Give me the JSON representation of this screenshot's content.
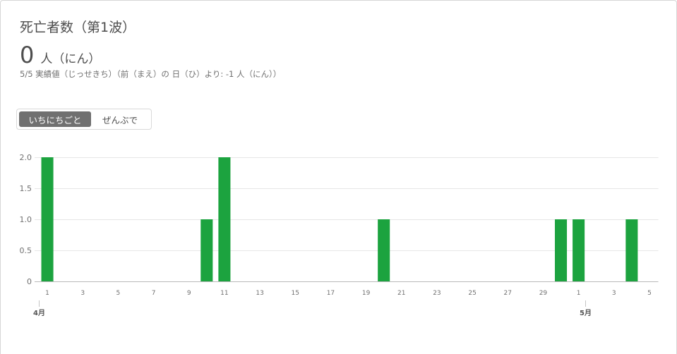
{
  "card": {
    "headline_value": "0",
    "headline_unit": "人（にん）",
    "summary": "5/5 実績値（じっせきち）（前（まえ）の 日（ひ）より: -1 人（にん））"
  },
  "toggle": {
    "options": [
      {
        "label": "いちにちごと",
        "selected": true
      },
      {
        "label": "ぜんぶで",
        "selected": false
      }
    ]
  },
  "colors": {
    "bar": "#1ca33f",
    "toggle_selected_bg": "#707070"
  },
  "chart_data": {
    "type": "bar",
    "title": "死亡者数（第1波）",
    "categories": [
      "4/1",
      "4/2",
      "4/3",
      "4/4",
      "4/5",
      "4/6",
      "4/7",
      "4/8",
      "4/9",
      "4/10",
      "4/11",
      "4/12",
      "4/13",
      "4/14",
      "4/15",
      "4/16",
      "4/17",
      "4/18",
      "4/19",
      "4/20",
      "4/21",
      "4/22",
      "4/23",
      "4/24",
      "4/25",
      "4/26",
      "4/27",
      "4/28",
      "4/29",
      "4/30",
      "5/1",
      "5/2",
      "5/3",
      "5/4",
      "5/5"
    ],
    "values": [
      2,
      0,
      0,
      0,
      0,
      0,
      0,
      0,
      0,
      1,
      2,
      0,
      0,
      0,
      0,
      0,
      0,
      0,
      0,
      1,
      0,
      0,
      0,
      0,
      0,
      0,
      0,
      0,
      0,
      1,
      1,
      0,
      0,
      1,
      0
    ],
    "x_tick_labels": [
      {
        "date": "4/1",
        "label": "1"
      },
      {
        "date": "4/3",
        "label": "3"
      },
      {
        "date": "4/5",
        "label": "5"
      },
      {
        "date": "4/7",
        "label": "7"
      },
      {
        "date": "4/9",
        "label": "9"
      },
      {
        "date": "4/11",
        "label": "11"
      },
      {
        "date": "4/13",
        "label": "13"
      },
      {
        "date": "4/15",
        "label": "15"
      },
      {
        "date": "4/17",
        "label": "17"
      },
      {
        "date": "4/19",
        "label": "19"
      },
      {
        "date": "4/21",
        "label": "21"
      },
      {
        "date": "4/23",
        "label": "23"
      },
      {
        "date": "4/25",
        "label": "25"
      },
      {
        "date": "4/27",
        "label": "27"
      },
      {
        "date": "4/29",
        "label": "29"
      },
      {
        "date": "5/1",
        "label": "1"
      },
      {
        "date": "5/3",
        "label": "3"
      },
      {
        "date": "5/5",
        "label": "5"
      }
    ],
    "month_labels": [
      {
        "date": "4/1",
        "label": "4月"
      },
      {
        "date": "5/1",
        "label": "5月"
      }
    ],
    "y_tick_labels": [
      "0",
      "0.5",
      "1.0",
      "1.5",
      "2.0"
    ],
    "ylim": [
      0,
      2
    ],
    "grid": true,
    "legend": "none"
  }
}
